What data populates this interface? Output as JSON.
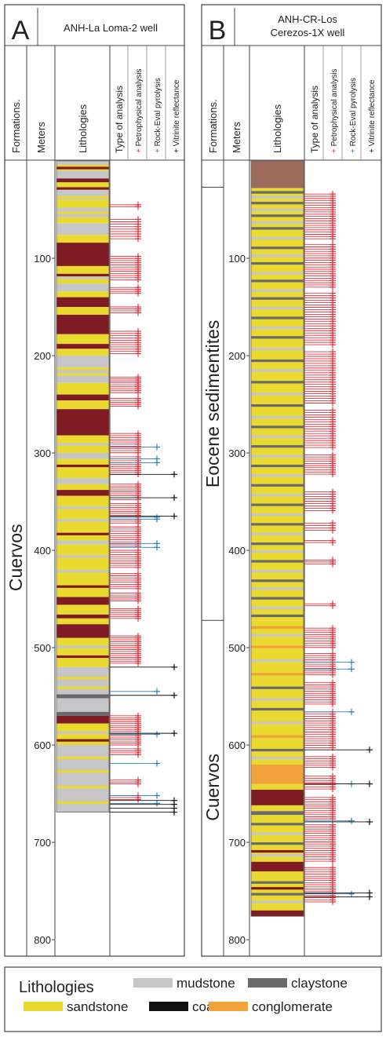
{
  "colors": {
    "sandstone": "#ead92e",
    "mudstone": "#c6c6c8",
    "claystone": "#6a6a6c",
    "coal": "#111111",
    "conglomerate": "#f2a23a",
    "red_bed": "#7f1b22",
    "brown_top": "#9c6b5c",
    "petrophysical": "#e8313a",
    "rock_eval": "#2a7fb8",
    "vitrinite": "#111111",
    "frame": "#444444"
  },
  "panels": [
    {
      "letter": "A",
      "well_title_lines": [
        "ANH-La Loma-2 well"
      ],
      "headers": [
        "Formations.",
        "Meters",
        "Lithologies",
        "Type of analysis"
      ],
      "analysis_labels": [
        "Petrophysical analysis",
        "Rock-Eval pyrolysis",
        "Vitrinite reflectance"
      ],
      "formations": [
        {
          "name": "Cuervos",
          "top": 0,
          "base": 815
        }
      ],
      "lith_top": 0,
      "lith_base": 669,
      "lithology": [
        {
          "top": 0,
          "base": 4,
          "type": "mudstone"
        },
        {
          "top": 4,
          "base": 10,
          "type": "sandstone"
        },
        {
          "top": 10,
          "base": 18,
          "type": "mudstone"
        },
        {
          "top": 18,
          "base": 22,
          "type": "red_bed"
        },
        {
          "top": 22,
          "base": 30,
          "type": "sandstone"
        },
        {
          "top": 30,
          "base": 40,
          "type": "mudstone"
        },
        {
          "top": 40,
          "base": 48,
          "type": "sandstone"
        },
        {
          "top": 48,
          "base": 58,
          "type": "mudstone"
        },
        {
          "top": 58,
          "base": 64,
          "type": "sandstone"
        },
        {
          "top": 64,
          "base": 76,
          "type": "mudstone"
        },
        {
          "top": 76,
          "base": 84,
          "type": "sandstone"
        },
        {
          "top": 84,
          "base": 108,
          "type": "red_bed"
        },
        {
          "top": 108,
          "base": 126,
          "type": "sandstone"
        },
        {
          "top": 126,
          "base": 134,
          "type": "mudstone"
        },
        {
          "top": 134,
          "base": 140,
          "type": "sandstone"
        },
        {
          "top": 140,
          "base": 150,
          "type": "red_bed"
        },
        {
          "top": 150,
          "base": 158,
          "type": "sandstone"
        },
        {
          "top": 158,
          "base": 178,
          "type": "red_bed"
        },
        {
          "top": 178,
          "base": 188,
          "type": "sandstone"
        },
        {
          "top": 188,
          "base": 193,
          "type": "red_bed"
        },
        {
          "top": 193,
          "base": 200,
          "type": "sandstone"
        },
        {
          "top": 200,
          "base": 228,
          "type": "mudstone"
        },
        {
          "top": 228,
          "base": 240,
          "type": "sandstone"
        },
        {
          "top": 240,
          "base": 246,
          "type": "red_bed"
        },
        {
          "top": 246,
          "base": 255,
          "type": "sandstone"
        },
        {
          "top": 255,
          "base": 282,
          "type": "red_bed"
        },
        {
          "top": 282,
          "base": 300,
          "type": "sandstone"
        },
        {
          "top": 300,
          "base": 306,
          "type": "mudstone"
        },
        {
          "top": 306,
          "base": 326,
          "type": "sandstone"
        },
        {
          "top": 326,
          "base": 332,
          "type": "mudstone"
        },
        {
          "top": 332,
          "base": 338,
          "type": "sandstone"
        },
        {
          "top": 338,
          "base": 344,
          "type": "red_bed"
        },
        {
          "top": 344,
          "base": 390,
          "type": "sandstone"
        },
        {
          "top": 390,
          "base": 394,
          "type": "mudstone"
        },
        {
          "top": 394,
          "base": 448,
          "type": "sandstone"
        },
        {
          "top": 448,
          "base": 456,
          "type": "red_bed"
        },
        {
          "top": 456,
          "base": 466,
          "type": "sandstone"
        },
        {
          "top": 466,
          "base": 470,
          "type": "red_bed"
        },
        {
          "top": 470,
          "base": 476,
          "type": "sandstone"
        },
        {
          "top": 476,
          "base": 490,
          "type": "red_bed"
        },
        {
          "top": 490,
          "base": 520,
          "type": "sandstone"
        },
        {
          "top": 520,
          "base": 548,
          "type": "mudstone"
        },
        {
          "top": 548,
          "base": 552,
          "type": "claystone"
        },
        {
          "top": 552,
          "base": 566,
          "type": "mudstone"
        },
        {
          "top": 566,
          "base": 570,
          "type": "claystone"
        },
        {
          "top": 570,
          "base": 578,
          "type": "red_bed"
        },
        {
          "top": 578,
          "base": 600,
          "type": "sandstone"
        },
        {
          "top": 600,
          "base": 669,
          "type": "mudstone"
        }
      ],
      "lith_thin": [
        {
          "d": 6,
          "type": "red_bed"
        },
        {
          "d": 27,
          "type": "red_bed"
        },
        {
          "d": 36,
          "type": "sandstone"
        },
        {
          "d": 52,
          "type": "sandstone"
        },
        {
          "d": 116,
          "type": "red_bed"
        },
        {
          "d": 119,
          "type": "mudstone"
        },
        {
          "d": 212,
          "type": "sandstone"
        },
        {
          "d": 218,
          "type": "sandstone"
        },
        {
          "d": 290,
          "type": "mudstone"
        },
        {
          "d": 312,
          "type": "red_bed"
        },
        {
          "d": 355,
          "type": "mudstone"
        },
        {
          "d": 368,
          "type": "mudstone"
        },
        {
          "d": 382,
          "type": "red_bed"
        },
        {
          "d": 405,
          "type": "mudstone"
        },
        {
          "d": 420,
          "type": "mudstone"
        },
        {
          "d": 436,
          "type": "red_bed"
        },
        {
          "d": 498,
          "type": "mudstone"
        },
        {
          "d": 508,
          "type": "red_bed"
        },
        {
          "d": 530,
          "type": "sandstone"
        },
        {
          "d": 540,
          "type": "sandstone"
        },
        {
          "d": 586,
          "type": "mudstone"
        },
        {
          "d": 594,
          "type": "red_bed"
        },
        {
          "d": 612,
          "type": "sandstone"
        },
        {
          "d": 626,
          "type": "sandstone"
        },
        {
          "d": 642,
          "type": "sandstone"
        },
        {
          "d": 658,
          "type": "sandstone"
        }
      ],
      "depth_ticks": [
        100,
        200,
        300,
        400,
        500,
        600,
        700,
        800
      ],
      "petrophysical_groups": [
        {
          "from": 45,
          "to": 47,
          "step": 2
        },
        {
          "from": 60,
          "to": 80,
          "step": 2.5
        },
        {
          "from": 98,
          "to": 124,
          "step": 2.2
        },
        {
          "from": 130,
          "to": 136,
          "step": 2
        },
        {
          "from": 150,
          "to": 156,
          "step": 2
        },
        {
          "from": 175,
          "to": 198,
          "step": 2.3
        },
        {
          "from": 222,
          "to": 238,
          "step": 2
        },
        {
          "from": 244,
          "to": 252,
          "step": 2
        },
        {
          "from": 280,
          "to": 300,
          "step": 2.2
        },
        {
          "from": 304,
          "to": 322,
          "step": 2
        },
        {
          "from": 332,
          "to": 348,
          "step": 2
        },
        {
          "from": 352,
          "to": 372,
          "step": 2
        },
        {
          "from": 376,
          "to": 396,
          "step": 2.2
        },
        {
          "from": 400,
          "to": 418,
          "step": 2.2
        },
        {
          "from": 424,
          "to": 440,
          "step": 2.2
        },
        {
          "from": 444,
          "to": 452,
          "step": 2
        },
        {
          "from": 460,
          "to": 470,
          "step": 2
        },
        {
          "from": 488,
          "to": 516,
          "step": 2
        },
        {
          "from": 570,
          "to": 578,
          "step": 2
        },
        {
          "from": 580,
          "to": 600,
          "step": 2
        },
        {
          "from": 604,
          "to": 610,
          "step": 2
        },
        {
          "from": 636,
          "to": 640,
          "step": 2
        },
        {
          "from": 652,
          "to": 656,
          "step": 2
        }
      ],
      "rock_eval": [
        294,
        306,
        310,
        366,
        368,
        393,
        397,
        545,
        589,
        619,
        652,
        660
      ],
      "vitrinite": [
        322,
        346,
        365,
        520,
        549,
        588,
        657,
        661,
        665,
        669
      ]
    },
    {
      "letter": "B",
      "well_title_lines": [
        "ANH-CR-Los",
        "Cerezos-1X well"
      ],
      "headers": [
        "Formations.",
        "Meters",
        "Lithologies",
        "Type of analysis"
      ],
      "analysis_labels": [
        "Petrophysical analysis",
        "Rock-Eval pyrolysis",
        "Vitrinite reflectance"
      ],
      "formations": [
        {
          "name": "",
          "top": 0,
          "base": 27
        },
        {
          "name": "Eocene sedimentites",
          "top": 27,
          "base": 472
        },
        {
          "name": "Cuervos",
          "top": 472,
          "base": 815
        }
      ],
      "lith_top": 0,
      "lith_base": 776,
      "lithology": [
        {
          "top": 0,
          "base": 28,
          "type": "brown_top"
        },
        {
          "top": 28,
          "base": 472,
          "type": "sandstone"
        },
        {
          "top": 472,
          "base": 620,
          "type": "sandstone"
        },
        {
          "top": 620,
          "base": 640,
          "type": "conglomerate"
        },
        {
          "top": 640,
          "base": 646,
          "type": "sandstone"
        },
        {
          "top": 646,
          "base": 662,
          "type": "red_bed"
        },
        {
          "top": 662,
          "base": 668,
          "type": "sandstone"
        },
        {
          "top": 668,
          "base": 672,
          "type": "claystone"
        },
        {
          "top": 672,
          "base": 720,
          "type": "sandstone"
        },
        {
          "top": 720,
          "base": 730,
          "type": "red_bed"
        },
        {
          "top": 730,
          "base": 770,
          "type": "sandstone"
        },
        {
          "top": 770,
          "base": 776,
          "type": "red_bed"
        }
      ],
      "lith_thin": [
        {
          "d": 31,
          "type": "claystone"
        },
        {
          "d": 36,
          "type": "mudstone"
        },
        {
          "d": 42,
          "type": "claystone"
        },
        {
          "d": 49,
          "type": "mudstone"
        },
        {
          "d": 55,
          "type": "claystone"
        },
        {
          "d": 62,
          "type": "mudstone"
        },
        {
          "d": 68,
          "type": "claystone"
        },
        {
          "d": 78,
          "type": "mudstone"
        },
        {
          "d": 88,
          "type": "claystone"
        },
        {
          "d": 96,
          "type": "mudstone"
        },
        {
          "d": 104,
          "type": "claystone"
        },
        {
          "d": 114,
          "type": "mudstone"
        },
        {
          "d": 122,
          "type": "claystone"
        },
        {
          "d": 132,
          "type": "mudstone"
        },
        {
          "d": 140,
          "type": "claystone"
        },
        {
          "d": 150,
          "type": "mudstone"
        },
        {
          "d": 160,
          "type": "claystone"
        },
        {
          "d": 170,
          "type": "mudstone"
        },
        {
          "d": 180,
          "type": "claystone"
        },
        {
          "d": 192,
          "type": "mudstone"
        },
        {
          "d": 204,
          "type": "claystone"
        },
        {
          "d": 214,
          "type": "mudstone"
        },
        {
          "d": 226,
          "type": "claystone"
        },
        {
          "d": 238,
          "type": "mudstone"
        },
        {
          "d": 250,
          "type": "claystone"
        },
        {
          "d": 262,
          "type": "mudstone"
        },
        {
          "d": 272,
          "type": "claystone"
        },
        {
          "d": 282,
          "type": "mudstone"
        },
        {
          "d": 292,
          "type": "claystone"
        },
        {
          "d": 302,
          "type": "mudstone"
        },
        {
          "d": 312,
          "type": "claystone"
        },
        {
          "d": 322,
          "type": "mudstone"
        },
        {
          "d": 332,
          "type": "claystone"
        },
        {
          "d": 342,
          "type": "mudstone"
        },
        {
          "d": 352,
          "type": "claystone"
        },
        {
          "d": 362,
          "type": "mudstone"
        },
        {
          "d": 372,
          "type": "claystone"
        },
        {
          "d": 382,
          "type": "mudstone"
        },
        {
          "d": 392,
          "type": "claystone"
        },
        {
          "d": 400,
          "type": "mudstone"
        },
        {
          "d": 410,
          "type": "claystone"
        },
        {
          "d": 420,
          "type": "mudstone"
        },
        {
          "d": 430,
          "type": "claystone"
        },
        {
          "d": 438,
          "type": "mudstone"
        },
        {
          "d": 448,
          "type": "claystone"
        },
        {
          "d": 458,
          "type": "mudstone"
        },
        {
          "d": 466,
          "type": "claystone"
        },
        {
          "d": 478,
          "type": "conglomerate"
        },
        {
          "d": 486,
          "type": "mudstone"
        },
        {
          "d": 498,
          "type": "conglomerate"
        },
        {
          "d": 512,
          "type": "mudstone"
        },
        {
          "d": 526,
          "type": "conglomerate"
        },
        {
          "d": 540,
          "type": "claystone"
        },
        {
          "d": 552,
          "type": "mudstone"
        },
        {
          "d": 562,
          "type": "claystone"
        },
        {
          "d": 576,
          "type": "mudstone"
        },
        {
          "d": 590,
          "type": "conglomerate"
        },
        {
          "d": 604,
          "type": "claystone"
        },
        {
          "d": 612,
          "type": "mudstone"
        },
        {
          "d": 680,
          "type": "claystone"
        },
        {
          "d": 690,
          "type": "mudstone"
        },
        {
          "d": 700,
          "type": "claystone"
        },
        {
          "d": 708,
          "type": "red_bed"
        },
        {
          "d": 712,
          "type": "mudstone"
        },
        {
          "d": 740,
          "type": "claystone"
        },
        {
          "d": 746,
          "type": "red_bed"
        },
        {
          "d": 752,
          "type": "claystone"
        },
        {
          "d": 760,
          "type": "mudstone"
        }
      ],
      "depth_ticks": [
        100,
        200,
        300,
        400,
        500,
        600,
        700,
        800
      ],
      "petrophysical_groups": [
        {
          "from": 34,
          "to": 80,
          "step": 2.3
        },
        {
          "from": 86,
          "to": 130,
          "step": 2.3
        },
        {
          "from": 136,
          "to": 190,
          "step": 2.4
        },
        {
          "from": 196,
          "to": 250,
          "step": 2.4
        },
        {
          "from": 256,
          "to": 296,
          "step": 2.4
        },
        {
          "from": 302,
          "to": 322,
          "step": 2.2
        },
        {
          "from": 340,
          "to": 360,
          "step": 2.4
        },
        {
          "from": 372,
          "to": 380,
          "step": 2.5
        },
        {
          "from": 390,
          "to": 392,
          "step": 2
        },
        {
          "from": 410,
          "to": 414,
          "step": 2
        },
        {
          "from": 455,
          "to": 457,
          "step": 2
        },
        {
          "from": 480,
          "to": 500,
          "step": 2.2
        },
        {
          "from": 506,
          "to": 530,
          "step": 2.2
        },
        {
          "from": 536,
          "to": 560,
          "step": 2.2
        },
        {
          "from": 566,
          "to": 604,
          "step": 2.3
        },
        {
          "from": 612,
          "to": 624,
          "step": 2.2
        },
        {
          "from": 632,
          "to": 646,
          "step": 2.2
        },
        {
          "from": 654,
          "to": 676,
          "step": 2.2
        },
        {
          "from": 682,
          "to": 720,
          "step": 2.2
        },
        {
          "from": 726,
          "to": 762,
          "step": 2.2
        }
      ],
      "rock_eval": [
        515,
        522,
        566,
        640,
        678,
        753
      ],
      "vitrinite": [
        605,
        640,
        679,
        752,
        756
      ]
    }
  ],
  "legend": {
    "title": "Lithologies",
    "items": [
      {
        "key": "mudstone",
        "label": "mudstone"
      },
      {
        "key": "claystone",
        "label": "claystone"
      },
      {
        "key": "sandstone",
        "label": "sandstone"
      },
      {
        "key": "coal",
        "label": "coal"
      },
      {
        "key": "conglomerate",
        "label": "conglomerate"
      }
    ]
  }
}
